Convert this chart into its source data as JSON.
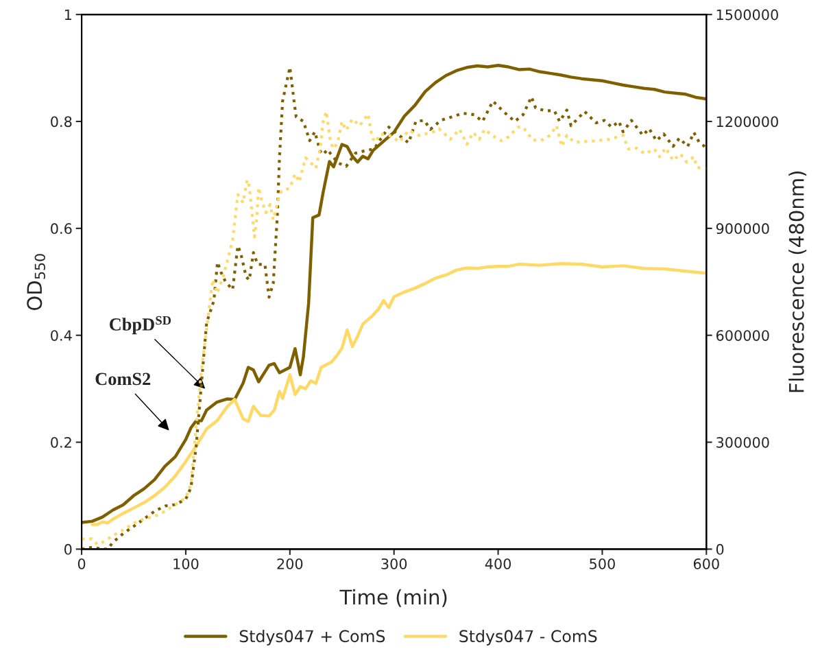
{
  "chart_data": {
    "type": "line",
    "xlabel": "Time (min)",
    "ylabel": "OD$_{550}$",
    "y2label": "Fluorescence (480nm)",
    "xlim": [
      0,
      600
    ],
    "xticks": [
      0,
      100,
      200,
      300,
      400,
      500,
      600
    ],
    "ylim": [
      0,
      1
    ],
    "yticks": [
      0,
      0.2,
      0.4,
      0.6,
      0.8,
      1
    ],
    "y2lim": [
      0,
      1500000
    ],
    "y2ticks": [
      0,
      300000,
      600000,
      900000,
      1200000,
      1500000
    ],
    "grid": false,
    "legend": "bottom",
    "annotations": [
      "ComS2",
      {
        "text": "CbpD$^{SD}$",
        "x": 118.6,
        "y": 0.3
      }
    ],
    "series": [
      {
        "name": "Stdys047 + ComS",
        "color": "#7f6000",
        "line_style": "solid",
        "x": [
          0,
          10,
          20,
          30,
          40,
          50,
          60,
          70,
          80,
          90,
          100,
          105,
          110,
          115,
          120,
          130,
          140,
          147,
          155,
          160,
          165,
          170,
          180,
          185,
          190,
          200,
          205,
          210,
          213,
          218,
          222,
          228,
          232,
          238,
          242,
          250,
          255,
          260,
          265,
          270,
          275,
          280,
          290,
          300,
          310,
          320,
          330,
          340,
          350,
          360,
          370,
          380,
          390,
          400,
          410,
          420,
          430,
          440,
          450,
          460,
          470,
          480,
          490,
          500,
          510,
          520,
          530,
          540,
          550,
          560,
          570,
          580,
          590,
          600
        ],
        "values": [
          0.05,
          0.052,
          0.06,
          0.073,
          0.083,
          0.1,
          0.113,
          0.13,
          0.155,
          0.173,
          0.205,
          0.227,
          0.24,
          0.24,
          0.26,
          0.275,
          0.281,
          0.28,
          0.31,
          0.34,
          0.335,
          0.313,
          0.344,
          0.347,
          0.33,
          0.34,
          0.375,
          0.326,
          0.36,
          0.46,
          0.62,
          0.625,
          0.668,
          0.725,
          0.715,
          0.757,
          0.753,
          0.735,
          0.724,
          0.735,
          0.73,
          0.746,
          0.763,
          0.78,
          0.81,
          0.83,
          0.856,
          0.873,
          0.886,
          0.895,
          0.901,
          0.904,
          0.902,
          0.905,
          0.902,
          0.897,
          0.898,
          0.893,
          0.89,
          0.887,
          0.883,
          0.88,
          0.878,
          0.876,
          0.872,
          0.868,
          0.865,
          0.862,
          0.86,
          0.855,
          0.853,
          0.851,
          0.845,
          0.842
        ]
      },
      {
        "name": "Stdys047 - ComS",
        "color": "#ffd966",
        "line_style": "solid",
        "x": [
          10,
          15,
          20,
          25,
          30,
          40,
          50,
          60,
          70,
          80,
          90,
          100,
          110,
          120,
          130,
          140,
          147,
          155,
          160,
          165,
          172,
          180,
          185,
          190,
          193,
          200,
          205,
          210,
          215,
          220,
          225,
          230,
          240,
          245,
          250,
          255,
          260,
          265,
          270,
          280,
          285,
          290,
          295,
          300,
          310,
          320,
          330,
          340,
          350,
          360,
          370,
          380,
          390,
          400,
          410,
          420,
          440,
          460,
          480,
          500,
          520,
          540,
          560,
          580,
          600
        ],
        "values": [
          0.046,
          0.046,
          0.051,
          0.049,
          0.056,
          0.067,
          0.077,
          0.087,
          0.1,
          0.116,
          0.137,
          0.164,
          0.193,
          0.225,
          0.24,
          0.267,
          0.28,
          0.244,
          0.239,
          0.267,
          0.25,
          0.249,
          0.26,
          0.295,
          0.282,
          0.326,
          0.289,
          0.304,
          0.3,
          0.315,
          0.31,
          0.34,
          0.35,
          0.362,
          0.376,
          0.41,
          0.379,
          0.398,
          0.421,
          0.438,
          0.449,
          0.465,
          0.452,
          0.472,
          0.481,
          0.488,
          0.497,
          0.507,
          0.513,
          0.522,
          0.526,
          0.525,
          0.528,
          0.529,
          0.529,
          0.533,
          0.531,
          0.534,
          0.533,
          0.528,
          0.53,
          0.525,
          0.524,
          0.52,
          0.516
        ]
      },
      {
        "color": "#7f6000",
        "line_style": "dotted",
        "axis": "y2",
        "x": [
          0,
          10,
          20,
          25,
          30,
          40,
          50,
          60,
          70,
          80,
          90,
          100,
          105,
          110,
          115,
          120,
          127,
          130.5,
          134,
          138,
          145,
          150,
          153,
          158,
          161,
          165,
          169,
          176,
          180,
          184,
          188,
          190,
          193,
          200,
          204,
          206,
          213,
          219,
          224,
          229,
          232,
          236,
          246,
          254,
          263,
          271,
          281,
          287,
          295,
          314,
          321,
          329,
          335,
          345,
          360,
          366,
          377,
          385,
          395,
          405,
          416,
          424,
          432,
          436,
          445,
          454,
          459,
          466,
          470,
          483,
          494,
          502,
          509,
          516,
          520,
          528,
          539,
          545,
          552,
          559,
          568,
          574,
          582,
          588,
          593,
          600
        ],
        "values": [
          0,
          5000,
          0,
          0,
          19000,
          44000,
          64000,
          85000,
          106000,
          121000,
          125000,
          140000,
          173000,
          289000,
          462000,
          635000,
          697000,
          805000,
          776000,
          751000,
          728000,
          851000,
          828000,
          764000,
          755000,
          832000,
          799000,
          799000,
          707000,
          745000,
          938000,
          1098000,
          1257000,
          1352000,
          1257000,
          1213000,
          1200000,
          1146000,
          1171000,
          1117000,
          1107000,
          1121000,
          1084000,
          1074000,
          1111000,
          1117000,
          1123000,
          1150000,
          1184000,
          1140000,
          1200000,
          1203000,
          1178000,
          1203000,
          1217000,
          1223000,
          1219000,
          1200000,
          1257000,
          1228000,
          1200000,
          1219000,
          1269000,
          1238000,
          1230000,
          1230000,
          1200000,
          1232000,
          1188000,
          1228000,
          1196000,
          1203000,
          1184000,
          1200000,
          1171000,
          1203000,
          1161000,
          1180000,
          1146000,
          1165000,
          1130000,
          1153000,
          1130000,
          1169000,
          1142000,
          1126000
        ]
      },
      {
        "color": "#ffd966",
        "line_style": "dotted",
        "axis": "y2",
        "x": [
          0,
          10,
          15,
          20,
          30,
          40,
          50,
          60,
          70,
          80,
          90,
          100,
          105,
          110,
          115,
          124,
          126,
          130,
          136,
          140,
          145,
          148,
          150,
          155,
          159,
          161,
          166,
          168,
          170,
          173,
          177,
          181,
          184,
          189,
          192,
          200,
          205,
          209,
          215,
          220,
          225,
          229,
          232,
          235,
          239,
          242,
          246,
          250,
          254,
          260,
          267,
          275,
          279,
          282,
          287,
          298,
          305,
          314,
          324,
          338,
          343,
          354,
          363,
          370,
          376,
          382,
          387,
          394,
          403,
          410,
          419,
          424,
          433,
          441,
          450,
          456,
          461,
          466,
          473,
          487,
          507,
          520,
          525,
          533,
          541,
          550,
          555,
          561,
          568,
          575,
          581,
          588,
          591,
          600
        ],
        "values": [
          29000,
          29000,
          13000,
          19000,
          38000,
          54000,
          73000,
          85000,
          92000,
          106000,
          125000,
          144000,
          183000,
          347000,
          500000,
          712000,
          757000,
          718000,
          764000,
          809000,
          866000,
          944000,
          995000,
          972000,
          1036000,
          1017000,
          876000,
          924000,
          1015000,
          976000,
          944000,
          967000,
          924000,
          982000,
          1005000,
          1013000,
          1053000,
          1030000,
          1098000,
          1084000,
          1069000,
          1123000,
          1200000,
          1228000,
          1142000,
          1123000,
          1142000,
          1200000,
          1175000,
          1207000,
          1188000,
          1221000,
          1155000,
          1142000,
          1165000,
          1159000,
          1142000,
          1175000,
          1161000,
          1171000,
          1180000,
          1150000,
          1178000,
          1136000,
          1169000,
          1150000,
          1178000,
          1161000,
          1146000,
          1157000,
          1184000,
          1184000,
          1148000,
          1146000,
          1161000,
          1188000,
          1130000,
          1161000,
          1142000,
          1144000,
          1150000,
          1161000,
          1123000,
          1125000,
          1109000,
          1123000,
          1101000,
          1126000,
          1090000,
          1109000,
          1086000,
          1101000,
          1071000,
          1067000
        ]
      }
    ]
  }
}
